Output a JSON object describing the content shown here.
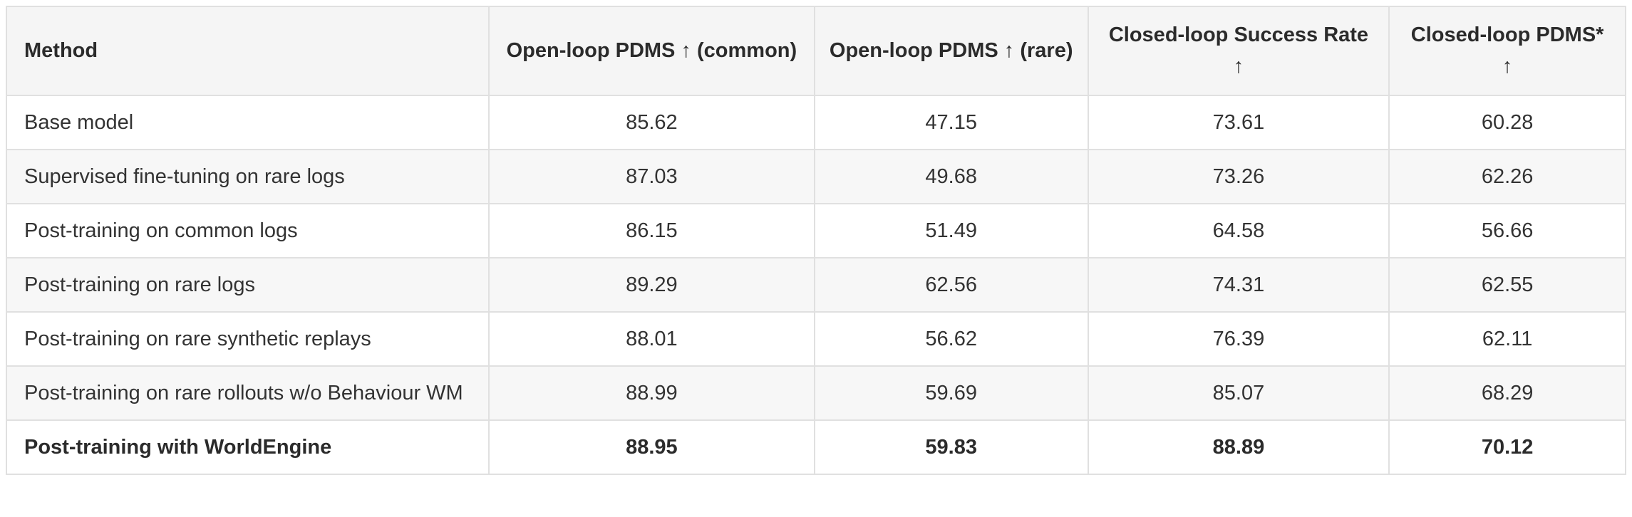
{
  "colors": {
    "header_background": "#f5f5f5",
    "stripe_background": "#f7f7f7",
    "border": "#e0e0e0",
    "text": "#333333"
  },
  "table": {
    "columns": [
      {
        "label": "Method"
      },
      {
        "label": "Open-loop PDMS ↑ (common)"
      },
      {
        "label": "Open-loop PDMS ↑ (rare)"
      },
      {
        "label": "Closed-loop Success Rate ↑"
      },
      {
        "label": "Closed-loop PDMS* ↑"
      }
    ],
    "rows": [
      {
        "method": "Base model",
        "values": [
          "85.62",
          "47.15",
          "73.61",
          "60.28"
        ]
      },
      {
        "method": "Supervised fine-tuning on rare logs",
        "values": [
          "87.03",
          "49.68",
          "73.26",
          "62.26"
        ]
      },
      {
        "method": "Post-training on common logs",
        "values": [
          "86.15",
          "51.49",
          "64.58",
          "56.66"
        ]
      },
      {
        "method": "Post-training on rare logs",
        "values": [
          "89.29",
          "62.56",
          "74.31",
          "62.55"
        ]
      },
      {
        "method": "Post-training on rare synthetic replays",
        "values": [
          "88.01",
          "56.62",
          "76.39",
          "62.11"
        ]
      },
      {
        "method": "Post-training on rare rollouts w/o Behaviour WM",
        "values": [
          "88.99",
          "59.69",
          "85.07",
          "68.29"
        ]
      },
      {
        "method": "Post-training with WorldEngine",
        "values": [
          "88.95",
          "59.83",
          "88.89",
          "70.12"
        ]
      }
    ]
  }
}
